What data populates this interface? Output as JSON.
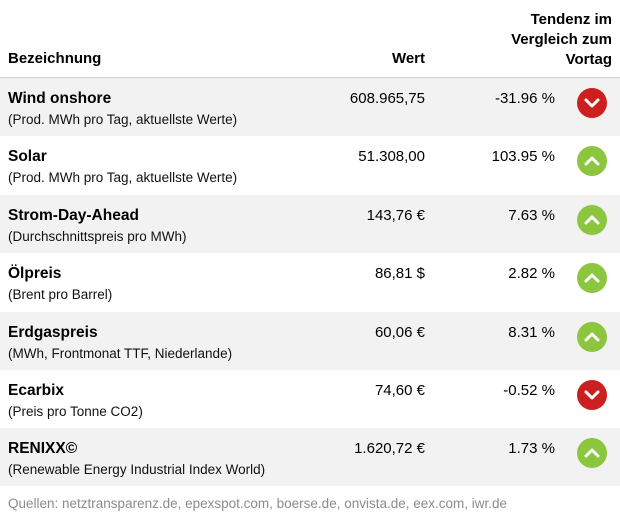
{
  "header": {
    "name": "Bezeichnung",
    "value": "Wert",
    "trend_line1": "Tendenz im",
    "trend_line2": "Vergleich zum",
    "trend_line3": "Vortag"
  },
  "colors": {
    "down": "#cc1f1f",
    "up": "#8cc63f",
    "row_shade": "#f2f2f2"
  },
  "rows": [
    {
      "name": "Wind onshore",
      "sub": "(Prod. MWh pro Tag, aktuellste Werte)",
      "value": "608.965,75",
      "pct": "-31.96 %",
      "trend": "down",
      "icon": "arrow-down-icon"
    },
    {
      "name": "Solar",
      "sub": "(Prod. MWh pro Tag, aktuellste Werte)",
      "value": "51.308,00",
      "pct": "103.95 %",
      "trend": "up",
      "icon": "arrow-up-icon"
    },
    {
      "name": "Strom-Day-Ahead",
      "sub": "(Durchschnittspreis pro MWh)",
      "value": "143,76 €",
      "pct": "7.63 %",
      "trend": "up",
      "icon": "arrow-up-icon"
    },
    {
      "name": "Ölpreis",
      "sub": "(Brent pro Barrel)",
      "value": "86,81 $",
      "pct": "2.82 %",
      "trend": "up",
      "icon": "arrow-up-icon"
    },
    {
      "name": "Erdgaspreis",
      "sub": "(MWh, Frontmonat TTF, Niederlande)",
      "value": "60,06 €",
      "pct": "8.31 %",
      "trend": "up",
      "icon": "arrow-up-icon"
    },
    {
      "name": "Ecarbix",
      "sub": "(Preis pro Tonne CO2)",
      "value": "74,60 €",
      "pct": "-0.52 %",
      "trend": "down",
      "icon": "arrow-down-icon"
    },
    {
      "name": "RENIXX©",
      "sub": "(Renewable Energy Industrial Index World)",
      "value": "1.620,72 €",
      "pct": "1.73 %",
      "trend": "up",
      "icon": "arrow-up-icon"
    }
  ],
  "footer": "Quellen: netztransparenz.de, epexspot.com, boerse.de, onvista.de, eex.com, iwr.de"
}
